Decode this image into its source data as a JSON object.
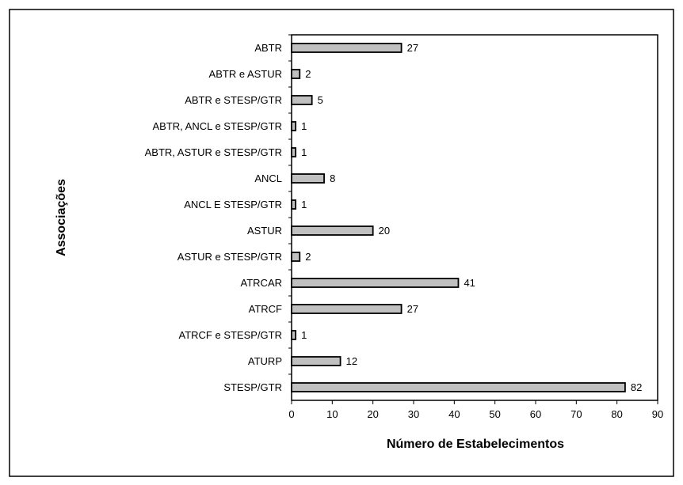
{
  "chart_data": {
    "type": "bar",
    "orientation": "horizontal",
    "categories": [
      "ABTR",
      "ABTR e ASTUR",
      "ABTR e STESP/GTR",
      "ABTR, ANCL e STESP/GTR",
      "ABTR, ASTUR e STESP/GTR",
      "ANCL",
      "ANCL E STESP/GTR",
      "ASTUR",
      "ASTUR e STESP/GTR",
      "ATRCAR",
      "ATRCF",
      "ATRCF e STESP/GTR",
      "ATURP",
      "STESP/GTR"
    ],
    "values": [
      27,
      2,
      5,
      1,
      1,
      8,
      1,
      20,
      2,
      41,
      27,
      1,
      12,
      82
    ],
    "data_labels": [
      "27",
      "2",
      "5",
      "1",
      "1",
      "8",
      "1",
      "20",
      "2",
      "41",
      "27",
      "1",
      "12",
      "82"
    ],
    "xlabel": "Número de Estabelecimentos",
    "ylabel": "Associações",
    "xlim": [
      0,
      90
    ],
    "xticks": [
      "0",
      "10",
      "20",
      "30",
      "40",
      "50",
      "60",
      "70",
      "80",
      "90"
    ],
    "grid": false,
    "legend": "none",
    "bar_color": "#c0c0c0",
    "border_color": "#000000"
  }
}
